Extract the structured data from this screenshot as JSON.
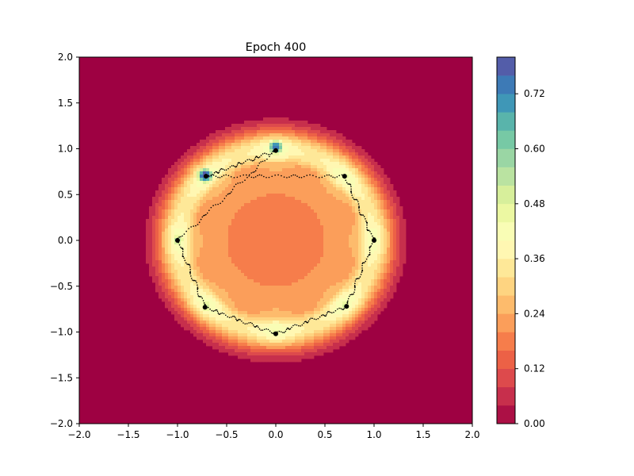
{
  "chart_data": {
    "type": "contour",
    "title": "Epoch 400",
    "xlabel": "",
    "ylabel": "",
    "xlim": [
      -2.0,
      2.0
    ],
    "ylim": [
      -2.0,
      2.0
    ],
    "x_ticks": [
      "−2.0",
      "−1.5",
      "−1.0",
      "−0.5",
      "0.0",
      "0.5",
      "1.0",
      "1.5",
      "2.0"
    ],
    "x_tick_values": [
      -2.0,
      -1.5,
      -1.0,
      -0.5,
      0.0,
      0.5,
      1.0,
      1.5,
      2.0
    ],
    "y_ticks": [
      "−2.0",
      "−1.5",
      "−1.0",
      "−0.5",
      "0.0",
      "0.5",
      "1.0",
      "1.5",
      "2.0"
    ],
    "y_tick_values": [
      -2.0,
      -1.5,
      -1.0,
      -0.5,
      0.0,
      0.5,
      1.0,
      1.5,
      2.0
    ],
    "colorbar": {
      "min": 0.0,
      "max": 0.8,
      "levels": 20,
      "ticks": [
        "0.00",
        "0.12",
        "0.24",
        "0.36",
        "0.48",
        "0.60",
        "0.72"
      ],
      "tick_values": [
        0.0,
        0.12,
        0.24,
        0.36,
        0.48,
        0.6,
        0.72
      ],
      "colormap": "Spectral"
    },
    "density_field": {
      "ring_radius": 1.0,
      "peaks": [
        {
          "x": 0.0,
          "y": 1.02,
          "value": 0.68
        },
        {
          "x": -0.72,
          "y": 0.71,
          "value": 0.76
        },
        {
          "x": 0.71,
          "y": 0.7,
          "value": 0.4
        },
        {
          "x": 1.0,
          "y": 0.0,
          "value": 0.38
        },
        {
          "x": 0.71,
          "y": -0.71,
          "value": 0.42
        },
        {
          "x": 0.0,
          "y": -1.0,
          "value": 0.4
        },
        {
          "x": -0.71,
          "y": -0.72,
          "value": 0.44
        },
        {
          "x": -1.0,
          "y": 0.0,
          "value": 0.46
        }
      ],
      "center_value": 0.14
    },
    "sample_clusters": [
      {
        "x": 0.0,
        "y": 0.98
      },
      {
        "x": -0.71,
        "y": 0.7
      },
      {
        "x": 0.7,
        "y": 0.7
      },
      {
        "x": 1.0,
        "y": 0.0
      },
      {
        "x": 0.72,
        "y": -0.72
      },
      {
        "x": 0.0,
        "y": -1.02
      },
      {
        "x": -0.72,
        "y": -0.73
      },
      {
        "x": -1.0,
        "y": 0.0
      }
    ],
    "sample_color": "#000000"
  }
}
